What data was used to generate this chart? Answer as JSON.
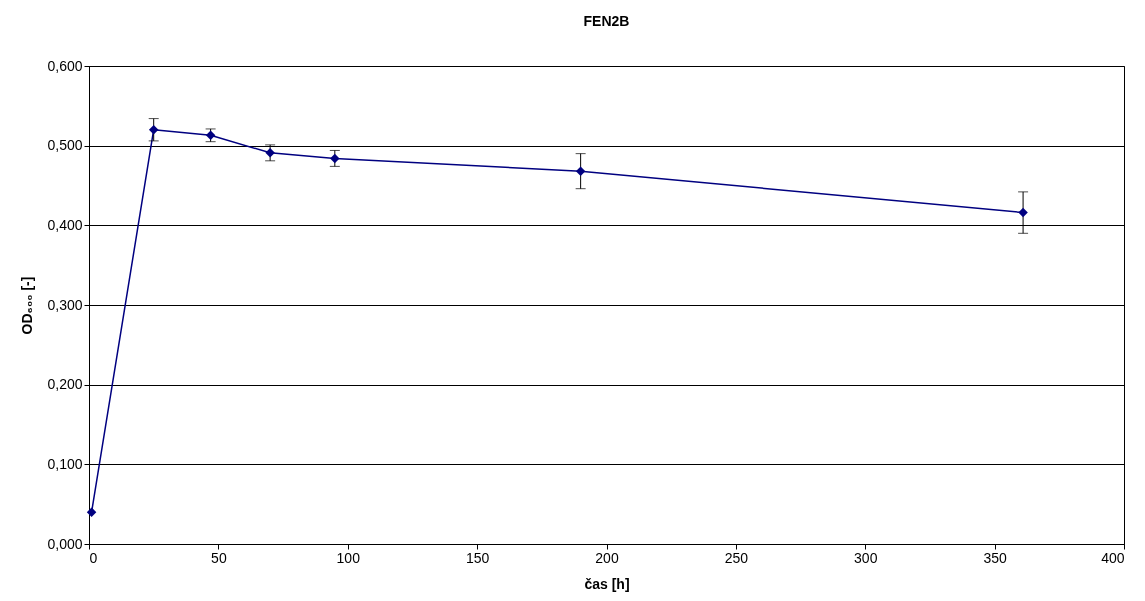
{
  "chart_data": {
    "type": "line",
    "title": "FEN2B",
    "xlabel": "čas [h]",
    "ylabel": "OD₆₀₀ [-]",
    "x": [
      1,
      25,
      47,
      70,
      95,
      190,
      361
    ],
    "series": [
      {
        "color": "#000080",
        "values": [
          0.04,
          0.52,
          0.513,
          0.491,
          0.484,
          0.468,
          0.416
        ],
        "errors": [
          null,
          0.014,
          0.008,
          0.01,
          0.01,
          0.022,
          0.026
        ]
      }
    ],
    "xlim": [
      0,
      400
    ],
    "xticks": [
      0,
      50,
      100,
      150,
      200,
      250,
      300,
      350,
      400
    ],
    "ylim": [
      0,
      0.6
    ],
    "yticks": [
      {
        "value": 0,
        "label": "0,000"
      },
      {
        "value": 0.1,
        "label": "0,100"
      },
      {
        "value": 0.2,
        "label": "0,200"
      },
      {
        "value": 0.3,
        "label": "0,300"
      },
      {
        "value": 0.4,
        "label": "0,400"
      },
      {
        "value": 0.5,
        "label": "0,500"
      },
      {
        "value": 0.6,
        "label": "0,600"
      }
    ],
    "grid": "y",
    "marker": "diamond",
    "line_style": "solid"
  }
}
